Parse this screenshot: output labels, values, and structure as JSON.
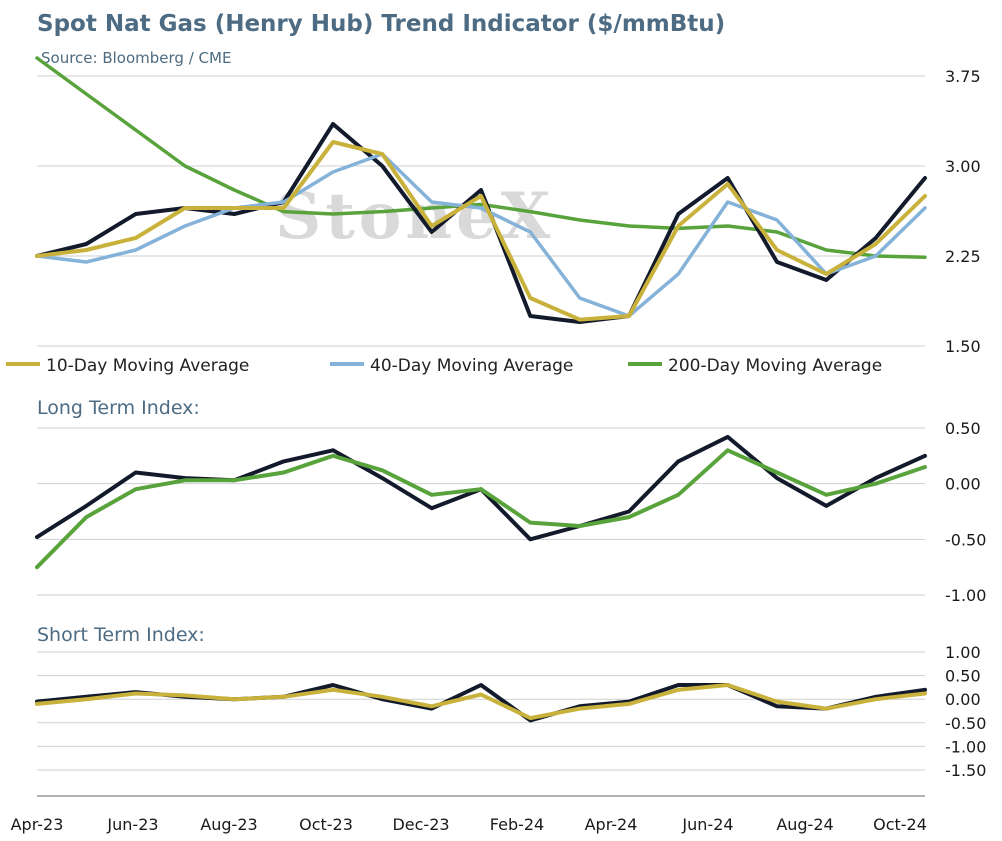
{
  "header": {
    "title": "Spot Nat Gas (Henry Hub) Trend Indicator ($/mmBtu)",
    "source": "Source: Bloomberg / CME",
    "watermark": "StoneX"
  },
  "colors": {
    "title": "#4d6b82",
    "spot": "#121a2b",
    "ma10": "#c9b23c",
    "ma40": "#84b2d8",
    "ma200": "#58a33c",
    "long_signal": "#58a33c",
    "short_signal": "#c9b23c"
  },
  "x_axis": {
    "labels": [
      "Apr-23",
      "Jun-23",
      "Aug-23",
      "Oct-23",
      "Dec-23",
      "Feb-24",
      "Apr-24",
      "Jun-24",
      "Aug-24",
      "Oct-24"
    ]
  },
  "chart_data": [
    {
      "type": "line",
      "panel": "price",
      "title": "Spot Nat Gas (Henry Hub) Trend Indicator ($/mmBtu)",
      "ylim": [
        1.5,
        3.75
      ],
      "yticks": [
        "3.75",
        "3.00",
        "2.25",
        "1.50"
      ],
      "x": [
        "Apr-23",
        "May-23",
        "Jun-23",
        "Jul-23",
        "Aug-23",
        "Sep-23",
        "Oct-23",
        "Nov-23",
        "Dec-23",
        "Jan-24",
        "Feb-24",
        "Mar-24",
        "Apr-24",
        "May-24",
        "Jun-24",
        "Jul-24",
        "Aug-24",
        "Sep-24",
        "Oct-24"
      ],
      "series": [
        {
          "name": "Spot",
          "values": [
            2.25,
            2.35,
            2.6,
            2.65,
            2.6,
            2.7,
            3.35,
            3.0,
            2.45,
            2.8,
            1.75,
            1.7,
            1.75,
            2.6,
            2.9,
            2.2,
            2.05,
            2.4,
            2.9
          ]
        },
        {
          "name": "10-Day Moving Average",
          "values": [
            2.25,
            2.3,
            2.4,
            2.65,
            2.65,
            2.65,
            3.2,
            3.1,
            2.5,
            2.75,
            1.9,
            1.72,
            1.75,
            2.5,
            2.85,
            2.3,
            2.1,
            2.35,
            2.75
          ]
        },
        {
          "name": "40-Day Moving Average",
          "values": [
            2.25,
            2.2,
            2.3,
            2.5,
            2.65,
            2.7,
            2.95,
            3.1,
            2.7,
            2.65,
            2.45,
            1.9,
            1.75,
            2.1,
            2.7,
            2.55,
            2.1,
            2.25,
            2.65
          ]
        },
        {
          "name": "200-Day Moving Average",
          "values": [
            3.9,
            3.6,
            3.3,
            3.0,
            2.8,
            2.62,
            2.6,
            2.62,
            2.65,
            2.68,
            2.62,
            2.55,
            2.5,
            2.48,
            2.5,
            2.45,
            2.3,
            2.25,
            2.24
          ]
        }
      ],
      "legend": [
        "10-Day Moving Average",
        "40-Day Moving Average",
        "200-Day Moving Average"
      ],
      "legend_position": "bottom"
    },
    {
      "type": "line",
      "panel": "long",
      "title": "Long Term Index:",
      "ylim": [
        -1.0,
        0.5
      ],
      "yticks": [
        "0.50",
        "0.00",
        "-0.50",
        "-1.00"
      ],
      "x": [
        "Apr-23",
        "May-23",
        "Jun-23",
        "Jul-23",
        "Aug-23",
        "Sep-23",
        "Oct-23",
        "Nov-23",
        "Dec-23",
        "Jan-24",
        "Feb-24",
        "Mar-24",
        "Apr-24",
        "May-24",
        "Jun-24",
        "Jul-24",
        "Aug-24",
        "Sep-24",
        "Oct-24"
      ],
      "series": [
        {
          "values": [
            -0.48,
            -0.2,
            0.1,
            0.05,
            0.03,
            0.2,
            0.3,
            0.05,
            -0.22,
            -0.05,
            -0.5,
            -0.38,
            -0.25,
            0.2,
            0.42,
            0.05,
            -0.2,
            0.05,
            0.25
          ]
        },
        {
          "values": [
            -0.75,
            -0.3,
            -0.05,
            0.03,
            0.03,
            0.1,
            0.25,
            0.12,
            -0.1,
            -0.05,
            -0.35,
            -0.38,
            -0.3,
            -0.1,
            0.3,
            0.1,
            -0.1,
            0.0,
            0.15
          ]
        }
      ]
    },
    {
      "type": "line",
      "panel": "short",
      "title": "Short Term Index:",
      "ylim": [
        -1.5,
        1.0
      ],
      "yticks": [
        "1.00",
        "0.50",
        "0.00",
        "-0.50",
        "-1.00",
        "-1.50"
      ],
      "x": [
        "Apr-23",
        "May-23",
        "Jun-23",
        "Jul-23",
        "Aug-23",
        "Sep-23",
        "Oct-23",
        "Nov-23",
        "Dec-23",
        "Jan-24",
        "Feb-24",
        "Mar-24",
        "Apr-24",
        "May-24",
        "Jun-24",
        "Jul-24",
        "Aug-24",
        "Sep-24",
        "Oct-24"
      ],
      "series": [
        {
          "values": [
            -0.05,
            0.05,
            0.15,
            0.05,
            0.0,
            0.05,
            0.3,
            0.0,
            -0.2,
            0.3,
            -0.45,
            -0.15,
            -0.05,
            0.3,
            0.3,
            -0.15,
            -0.2,
            0.05,
            0.2
          ]
        },
        {
          "values": [
            -0.1,
            0.0,
            0.12,
            0.08,
            0.0,
            0.05,
            0.2,
            0.05,
            -0.15,
            0.1,
            -0.4,
            -0.2,
            -0.1,
            0.2,
            0.3,
            -0.05,
            -0.2,
            0.0,
            0.12
          ]
        }
      ]
    }
  ]
}
